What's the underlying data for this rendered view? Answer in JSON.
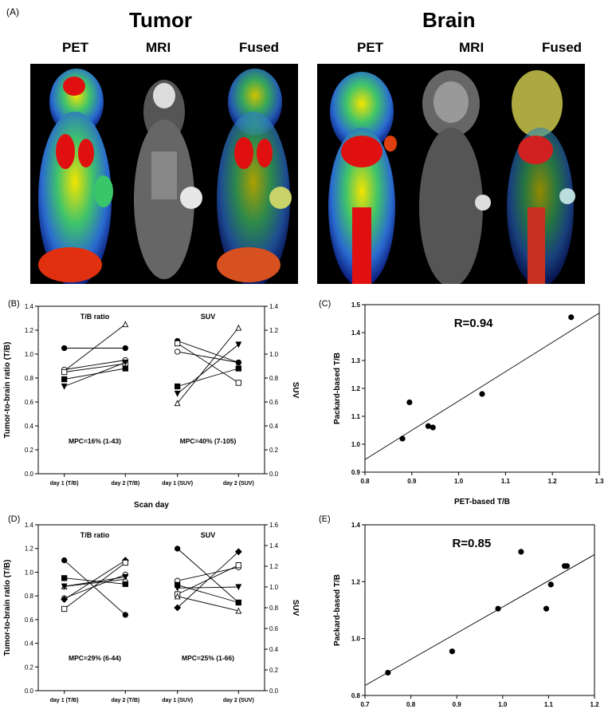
{
  "panel_a": {
    "label": "(A)",
    "groups": [
      {
        "title": "Tumor",
        "modalities": [
          "PET",
          "MRI",
          "Fused"
        ]
      },
      {
        "title": "Brain",
        "modalities": [
          "PET",
          "MRI",
          "Fused"
        ]
      }
    ]
  },
  "chart_data": [
    {
      "id": "B",
      "panel_label": "(B)",
      "type": "line",
      "categories": [
        "day 1 (T/B)",
        "day 2 (T/B)",
        "day 1 (SUV)",
        "day 2 (SUV)"
      ],
      "xlabel": "Scan day",
      "ylabel": "Tumor-to-brain ratio (T/B)",
      "ylabel_right": "SUV",
      "ylim": [
        0,
        1.4
      ],
      "ylim_right": [
        0,
        1.4
      ],
      "yticks": [
        "0.0",
        "0.2",
        "0.4",
        "0.6",
        "0.8",
        "1.0",
        "1.2",
        "1.4"
      ],
      "yticks_right": [
        "0.0",
        "0.2",
        "0.4",
        "0.6",
        "0.8",
        "1.0",
        "1.2",
        "1.4"
      ],
      "group_titles": [
        "T/B ratio",
        "SUV"
      ],
      "annotations": [
        "MPC=16% (1-43)",
        "MPC=40% (7-105)"
      ],
      "tb_lines": [
        {
          "marker": "circle-filled",
          "values": [
            1.05,
            1.05
          ]
        },
        {
          "marker": "triangle-open",
          "values": [
            0.86,
            1.25
          ]
        },
        {
          "marker": "circle-open",
          "values": [
            0.87,
            0.95
          ]
        },
        {
          "marker": "square-open",
          "values": [
            0.85,
            0.92
          ]
        },
        {
          "marker": "square-filled",
          "values": [
            0.79,
            0.88
          ]
        },
        {
          "marker": "triangle-down-filled",
          "values": [
            0.73,
            0.93
          ]
        }
      ],
      "suv_lines": [
        {
          "marker": "triangle-open",
          "values": [
            0.59,
            1.22
          ]
        },
        {
          "marker": "triangle-down-filled",
          "values": [
            0.67,
            1.08
          ]
        },
        {
          "marker": "square-filled",
          "values": [
            0.73,
            0.88
          ]
        },
        {
          "marker": "circle-open",
          "values": [
            1.02,
            0.93
          ]
        },
        {
          "marker": "circle-filled",
          "values": [
            1.11,
            0.93
          ]
        },
        {
          "marker": "square-open",
          "values": [
            1.09,
            0.76
          ]
        }
      ]
    },
    {
      "id": "C",
      "panel_label": "(C)",
      "type": "scatter",
      "xlabel": "PET-based T/B",
      "ylabel": "Packard-based T/B",
      "xlim": [
        0.8,
        1.3
      ],
      "ylim": [
        0.9,
        1.5
      ],
      "xticks": [
        "0.8",
        "0.9",
        "1.0",
        "1.1",
        "1.2",
        "1.3"
      ],
      "yticks": [
        "0.9",
        "1.0",
        "1.1",
        "1.2",
        "1.3",
        "1.4",
        "1.5"
      ],
      "annotation": "R=0.94",
      "points": [
        [
          0.88,
          1.02
        ],
        [
          0.895,
          1.15
        ],
        [
          0.935,
          1.065
        ],
        [
          0.945,
          1.06
        ],
        [
          1.05,
          1.18
        ],
        [
          1.24,
          1.455
        ]
      ],
      "fit_line": [
        [
          0.8,
          0.945
        ],
        [
          1.3,
          1.47
        ]
      ]
    },
    {
      "id": "D",
      "panel_label": "(D)",
      "type": "line",
      "categories": [
        "day 1 (T/B)",
        "day 2 (T/B)",
        "day 1 (SUV)",
        "day 2 (SUV)"
      ],
      "ylabel": "Tumor-to-brain ratio (T/B)",
      "ylabel_right": "SUV",
      "ylim": [
        0,
        1.4
      ],
      "ylim_right": [
        0,
        1.6
      ],
      "yticks": [
        "0.0",
        "0.2",
        "0.4",
        "0.6",
        "0.8",
        "1.0",
        "1.2",
        "1.4"
      ],
      "yticks_right": [
        "0.0",
        "0.2",
        "0.4",
        "0.6",
        "0.8",
        "1.0",
        "1.2",
        "1.4",
        "1.6"
      ],
      "group_titles": [
        "T/B ratio",
        "SUV"
      ],
      "annotations": [
        "MPC=29% (6-44)",
        "MPC=25% (1-66)"
      ],
      "tb_lines": [
        {
          "marker": "circle-filled",
          "values": [
            1.1,
            0.64
          ]
        },
        {
          "marker": "square-filled",
          "values": [
            0.95,
            0.9
          ]
        },
        {
          "marker": "triangle-open",
          "values": [
            0.88,
            0.94
          ]
        },
        {
          "marker": "circle-open",
          "values": [
            0.78,
            0.98
          ]
        },
        {
          "marker": "diamond-filled",
          "values": [
            0.77,
            1.1
          ]
        },
        {
          "marker": "square-open",
          "values": [
            0.69,
            1.08
          ]
        },
        {
          "marker": "triangle-down-filled",
          "values": [
            0.88,
            0.96
          ]
        }
      ],
      "suv_lines": [
        {
          "marker": "circle-filled",
          "values": [
            1.37,
            0.85
          ]
        },
        {
          "marker": "circle-open",
          "values": [
            1.06,
            1.19
          ]
        },
        {
          "marker": "square-filled",
          "values": [
            1.02,
            0.85
          ]
        },
        {
          "marker": "triangle-down-filled",
          "values": [
            0.99,
            1.0
          ]
        },
        {
          "marker": "square-open",
          "values": [
            0.93,
            1.21
          ]
        },
        {
          "marker": "triangle-open",
          "values": [
            0.91,
            0.77
          ]
        },
        {
          "marker": "diamond-filled",
          "values": [
            0.8,
            1.34
          ]
        }
      ]
    },
    {
      "id": "E",
      "panel_label": "(E)",
      "type": "scatter",
      "ylabel": "Packard-based T/B",
      "xlim": [
        0.7,
        1.2
      ],
      "ylim": [
        0.8,
        1.4
      ],
      "xticks": [
        "0.7",
        "0.8",
        "0.9",
        "1.0",
        "1.1",
        "1.2"
      ],
      "yticks": [
        "0.8",
        "1.0",
        "1.2",
        "1.4"
      ],
      "annotation": "R=0.85",
      "points": [
        [
          0.75,
          0.88
        ],
        [
          0.89,
          0.955
        ],
        [
          0.99,
          1.105
        ],
        [
          1.04,
          1.305
        ],
        [
          1.095,
          1.105
        ],
        [
          1.105,
          1.19
        ],
        [
          1.135,
          1.255
        ],
        [
          1.14,
          1.255
        ]
      ],
      "fit_line": [
        [
          0.7,
          0.835
        ],
        [
          1.2,
          1.295
        ]
      ]
    }
  ]
}
